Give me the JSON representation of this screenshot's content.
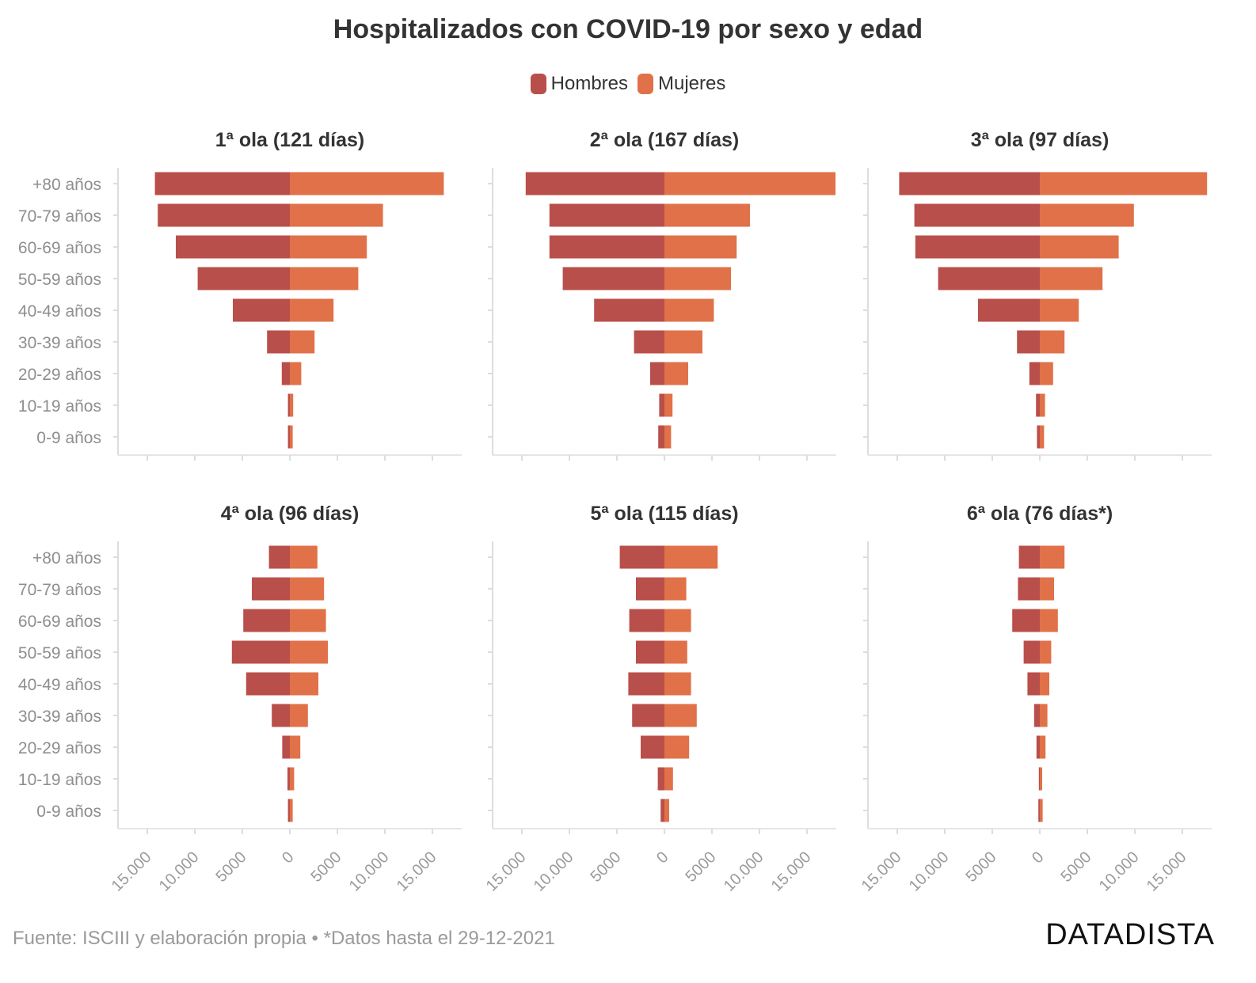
{
  "title": "Hospitalizados con COVID-19 por sexo y edad",
  "legend": [
    {
      "label": "Hombres",
      "color": "#b94f4a"
    },
    {
      "label": "Mujeres",
      "color": "#e07148"
    }
  ],
  "footer": "Fuente: ISCIII y elaboración propia • *Datos hasta el 29-12-2021",
  "brand": "DATADISTA",
  "chart_data": {
    "type": "bar",
    "orientation": "horizontal",
    "layout": "population-pyramid small multiples",
    "categories": [
      "+80 años",
      "70-79 años",
      "60-69 años",
      "50-59 años",
      "40-49 años",
      "30-39 años",
      "20-29 años",
      "10-19 años",
      "0-9 años"
    ],
    "x_ticks": [
      "15.000",
      "10.000",
      "5000",
      "0",
      "5000",
      "10.000",
      "15.000"
    ],
    "xlim": [
      -18000,
      18000
    ],
    "grid": false,
    "legend_position": "top",
    "panels": [
      {
        "title": "1ª ola (121 días)",
        "series": [
          {
            "name": "Hombres",
            "values": [
              14200,
              13900,
              12000,
              9700,
              6000,
              2400,
              850,
              200,
              200
            ]
          },
          {
            "name": "Mujeres",
            "values": [
              16200,
              9800,
              8100,
              7200,
              4600,
              2600,
              1200,
              350,
              300
            ]
          }
        ]
      },
      {
        "title": "2ª ola (167 días)",
        "series": [
          {
            "name": "Hombres",
            "values": [
              14600,
              12100,
              12100,
              10700,
              7400,
              3200,
              1500,
              550,
              650
            ]
          },
          {
            "name": "Mujeres",
            "values": [
              18000,
              9000,
              7600,
              7000,
              5200,
              4000,
              2500,
              850,
              700
            ]
          }
        ]
      },
      {
        "title": "3ª ola (97 días)",
        "series": [
          {
            "name": "Hombres",
            "values": [
              14800,
              13200,
              13100,
              10700,
              6500,
              2400,
              1100,
              400,
              300
            ]
          },
          {
            "name": "Mujeres",
            "values": [
              17600,
              9900,
              8300,
              6600,
              4100,
              2600,
              1400,
              550,
              450
            ]
          }
        ]
      },
      {
        "title": "4ª ola (96 días)",
        "series": [
          {
            "name": "Hombres",
            "values": [
              2200,
              4000,
              4900,
              6100,
              4600,
              1900,
              800,
              250,
              200
            ]
          },
          {
            "name": "Mujeres",
            "values": [
              2900,
              3600,
              3800,
              4000,
              3000,
              1900,
              1100,
              450,
              300
            ]
          }
        ]
      },
      {
        "title": "5ª ola (115 días)",
        "series": [
          {
            "name": "Hombres",
            "values": [
              4700,
              3000,
              3700,
              3000,
              3800,
              3400,
              2500,
              700,
              400
            ]
          },
          {
            "name": "Mujeres",
            "values": [
              5600,
              2300,
              2800,
              2400,
              2800,
              3400,
              2600,
              900,
              500
            ]
          }
        ]
      },
      {
        "title": "6ª ola (76 días*)",
        "series": [
          {
            "name": "Hombres",
            "values": [
              2200,
              2300,
              2900,
              1700,
              1300,
              600,
              350,
              100,
              150
            ]
          },
          {
            "name": "Mujeres",
            "values": [
              2600,
              1500,
              1900,
              1200,
              1000,
              800,
              600,
              250,
              300
            ]
          }
        ]
      }
    ]
  }
}
